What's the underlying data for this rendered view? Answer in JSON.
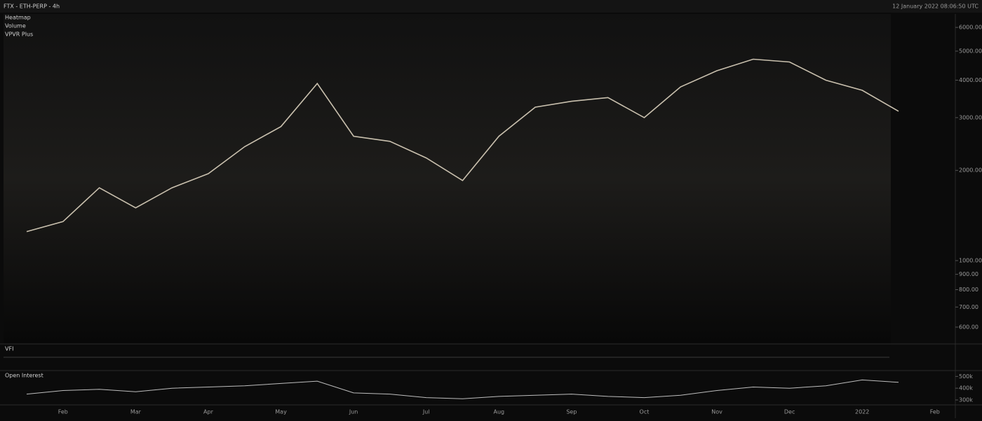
{
  "header": {
    "title": "FTX - ETH-PERP - 4h",
    "timestamp": "12 January 2022 08:06:50 UTC"
  },
  "chart_data": [
    {
      "type": "line",
      "indicators": [
        "Heatmap",
        "Volume",
        "VPVR Plus"
      ],
      "scale": "log",
      "categories": [
        null,
        "Feb",
        null,
        "Mar",
        null,
        "Apr",
        null,
        "May",
        null,
        "Jun",
        null,
        "Jul",
        null,
        "Aug",
        null,
        "Sep",
        null,
        "Oct",
        null,
        "Nov",
        null,
        "Dec",
        null,
        "2022",
        null,
        "Feb"
      ],
      "series": [
        {
          "color": "#c9c0ae",
          "values": [
            1250,
            1350,
            1750,
            1500,
            1750,
            1950,
            2400,
            2800,
            3900,
            2600,
            2500,
            2200,
            1850,
            2600,
            3250,
            3400,
            3500,
            3000,
            3800,
            4300,
            4700,
            4600,
            4000,
            3700,
            3150,
            null
          ]
        }
      ],
      "ylim": [
        530,
        6650
      ],
      "yticks": [
        {
          "value": 600,
          "label": "600.00"
        },
        {
          "value": 700,
          "label": "700.00"
        },
        {
          "value": 800,
          "label": "800.00"
        },
        {
          "value": 900,
          "label": "900.00"
        },
        {
          "value": 1000,
          "label": "1000.00"
        },
        {
          "value": 2000,
          "label": "2000.00"
        },
        {
          "value": 3000,
          "label": "3000.00"
        },
        {
          "value": 4000,
          "label": "4000.00"
        },
        {
          "value": 5000,
          "label": "5000.00"
        },
        {
          "value": 6000,
          "label": "6000.00"
        }
      ]
    },
    {
      "type": "panel",
      "title": "VFI"
    },
    {
      "type": "line",
      "title": "Open Interest",
      "scale": "linear",
      "series": [
        {
          "color": "#bdbdbd",
          "values": [
            350000,
            380000,
            390000,
            370000,
            400000,
            410000,
            420000,
            440000,
            460000,
            360000,
            350000,
            320000,
            310000,
            330000,
            340000,
            350000,
            330000,
            320000,
            340000,
            380000,
            410000,
            400000,
            420000,
            470000,
            450000,
            null
          ]
        }
      ],
      "ylim": [
        270000,
        520000
      ],
      "yticks": [
        {
          "value": 300000,
          "label": "300k"
        },
        {
          "value": 400000,
          "label": "400k"
        },
        {
          "value": 500000,
          "label": "500k"
        }
      ]
    }
  ]
}
